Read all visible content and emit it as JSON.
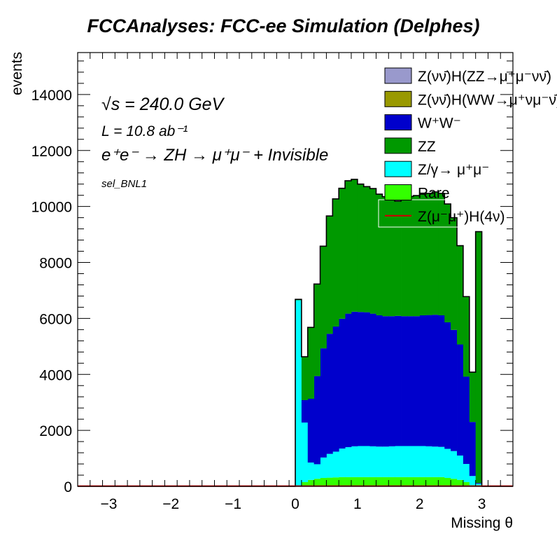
{
  "chart_data": {
    "type": "area",
    "stacked": true,
    "title": "FCCAnalyses: FCC-ee Simulation (Delphes)",
    "xlabel": "Missing θ",
    "ylabel": "events",
    "xlim": [
      -3.5,
      3.5
    ],
    "ylim": [
      0,
      15500
    ],
    "x_ticks": [
      -3,
      -2,
      -1,
      0,
      1,
      2,
      3
    ],
    "y_ticks": [
      0,
      2000,
      4000,
      6000,
      8000,
      10000,
      12000,
      14000
    ],
    "bin_start": 0,
    "bin_width": 0.1,
    "annotations": {
      "energy": "√s = 240.0 GeV",
      "lumi": "L = 10.8 ab⁻¹",
      "process": "e⁺e⁻ → ZH → μ⁺μ⁻ + Invisible",
      "selection": "sel_BNL1"
    },
    "series": [
      {
        "name": "Rare",
        "color": "#33ff00",
        "values": [
          30,
          150,
          230,
          270,
          300,
          310,
          320,
          330,
          330,
          330,
          330,
          330,
          330,
          330,
          330,
          330,
          330,
          330,
          330,
          330,
          330,
          330,
          330,
          330,
          300,
          270,
          230,
          150,
          40,
          40
        ]
      },
      {
        "name": "Z/γ→ μ⁺μ⁻",
        "color": "#00ffff",
        "values": [
          6620,
          2130,
          620,
          520,
          730,
          850,
          920,
          1020,
          1070,
          1100,
          1110,
          1110,
          1100,
          1090,
          1090,
          1100,
          1110,
          1110,
          1110,
          1110,
          1110,
          1100,
          1090,
          1080,
          1040,
          990,
          870,
          650,
          330,
          50
        ]
      },
      {
        "name": "W⁺W⁻",
        "color": "#0000cc",
        "values": [
          0,
          800,
          2280,
          3150,
          3900,
          4290,
          4470,
          4640,
          4770,
          4810,
          4790,
          4780,
          4740,
          4690,
          4660,
          4650,
          4650,
          4640,
          4640,
          4640,
          4670,
          4690,
          4710,
          4700,
          4520,
          4330,
          3970,
          3120,
          1930,
          30
        ]
      },
      {
        "name": "ZZ",
        "color": "#009900",
        "values": [
          30,
          1550,
          2550,
          3290,
          3650,
          4210,
          4560,
          4660,
          4750,
          4730,
          4570,
          4490,
          4470,
          4330,
          4270,
          4160,
          4100,
          4190,
          4280,
          4310,
          4330,
          4350,
          4390,
          4360,
          4230,
          4010,
          3530,
          2860,
          1780,
          8980
        ]
      },
      {
        "name": "Z(νν̄)H(WW→μ⁺νμ⁻ν̄)",
        "color": "#999900",
        "values": [
          0,
          0,
          0,
          0,
          0,
          0,
          0,
          0,
          0,
          0,
          0,
          0,
          0,
          0,
          0,
          0,
          0,
          0,
          0,
          0,
          0,
          0,
          0,
          0,
          0,
          0,
          0,
          0,
          0,
          0
        ]
      },
      {
        "name": "Z(νν̄)H(ZZ→μ⁺μ⁻νν̄)",
        "color": "#9999cc",
        "values": [
          0,
          0,
          0,
          0,
          0,
          0,
          0,
          0,
          0,
          0,
          0,
          0,
          0,
          0,
          0,
          0,
          0,
          0,
          0,
          0,
          0,
          0,
          0,
          0,
          0,
          0,
          0,
          0,
          0,
          0
        ]
      },
      {
        "name": "Z(μ⁻μ⁺)H(4ν)",
        "color": "#cc0000",
        "line": true,
        "values": [
          10,
          10,
          10,
          10,
          10,
          10,
          10,
          10,
          10,
          10,
          10,
          10,
          10,
          10,
          10,
          10,
          10,
          10,
          10,
          10,
          10,
          10,
          10,
          10,
          10,
          10,
          10,
          10,
          10,
          10
        ]
      }
    ],
    "legend": [
      {
        "label": "Z(νν̄)H(ZZ→μ⁺μ⁻νν̄)",
        "color": "#9999cc",
        "kind": "box"
      },
      {
        "label": "Z(νν̄)H(WW→μ⁺νμ⁻ν̄)",
        "color": "#999900",
        "kind": "box"
      },
      {
        "label": "W⁺W⁻",
        "color": "#0000cc",
        "kind": "box"
      },
      {
        "label": "ZZ",
        "color": "#009900",
        "kind": "box"
      },
      {
        "label": "Z/γ→ μ⁺μ⁻",
        "color": "#00ffff",
        "kind": "box"
      },
      {
        "label": "Rare",
        "color": "#33ff00",
        "kind": "box"
      },
      {
        "label": "Z(μ⁻μ⁺)H(4ν)",
        "color": "#cc0000",
        "kind": "line"
      }
    ],
    "legend_position": "top-right"
  }
}
